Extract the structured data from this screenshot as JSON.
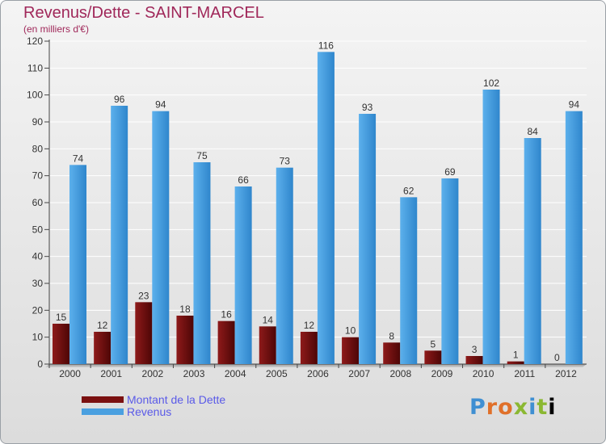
{
  "title": "Revenus/Dette - SAINT-MARCEL",
  "subtitle": "(en milliers d'€)",
  "logo": "Proxiti",
  "colors": {
    "dette": "#7a1010",
    "revenus": "#4aa0e0"
  },
  "chart_data": {
    "type": "bar",
    "categories": [
      "2000",
      "2001",
      "2002",
      "2003",
      "2004",
      "2005",
      "2006",
      "2007",
      "2008",
      "2009",
      "2010",
      "2011",
      "2012"
    ],
    "series": [
      {
        "name": "Montant de la Dette",
        "values": [
          15,
          12,
          23,
          18,
          16,
          14,
          12,
          10,
          8,
          5,
          3,
          1,
          0
        ]
      },
      {
        "name": "Revenus",
        "values": [
          74,
          96,
          94,
          75,
          66,
          73,
          116,
          93,
          62,
          69,
          102,
          84,
          94
        ]
      }
    ],
    "ylim": [
      0,
      120
    ],
    "yticks": [
      0,
      10,
      20,
      30,
      40,
      50,
      60,
      70,
      80,
      90,
      100,
      110,
      120
    ],
    "grid": true,
    "legend": "bottom-left"
  }
}
